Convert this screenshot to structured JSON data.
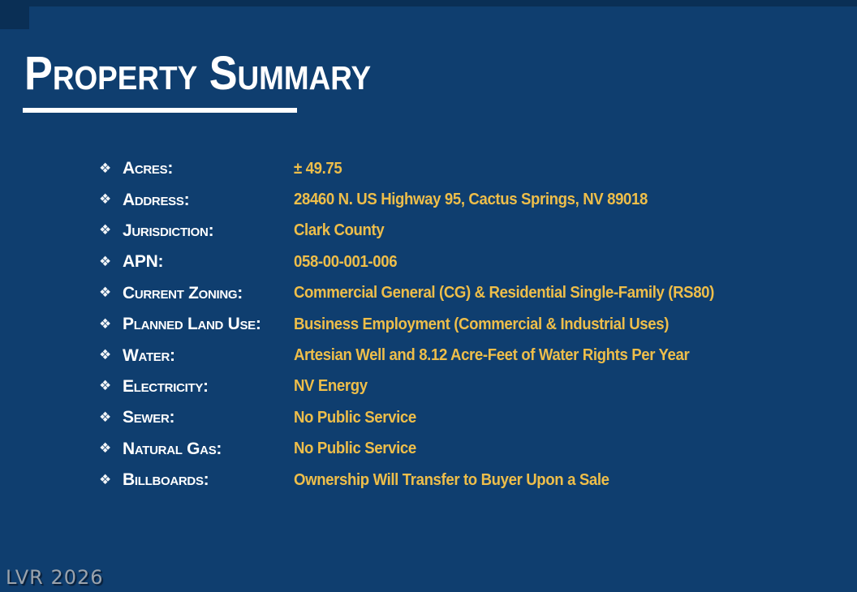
{
  "slide": {
    "title": "Property Summary",
    "watermark": "LVR 2026",
    "bullet_glyph": "❖",
    "colors": {
      "background": "#0F3E6F",
      "top_accent": "#0A2F55",
      "title_text": "#FFFFFF",
      "label_text": "#FFFFFF",
      "value_text": "#EEBE4A",
      "underline": "#FFFFFF",
      "watermark_text": "#A3A9B0"
    },
    "rows": [
      {
        "label": "Acres:",
        "value": "± 49.75"
      },
      {
        "label": "Address:",
        "value": "28460 N. US Highway 95, Cactus Springs, NV 89018"
      },
      {
        "label": "Jurisdiction:",
        "value": "Clark County"
      },
      {
        "label": "APN:",
        "value": "058-00-001-006"
      },
      {
        "label": "Current Zoning:",
        "value": "Commercial General (CG) & Residential Single-Family (RS80)"
      },
      {
        "label": "Planned Land Use:",
        "value": "Business Employment (Commercial & Industrial Uses)"
      },
      {
        "label": "Water:",
        "value": "Artesian Well and 8.12 Acre-Feet of Water Rights Per Year"
      },
      {
        "label": "Electricity:",
        "value": "NV Energy"
      },
      {
        "label": "Sewer:",
        "value": "No Public Service"
      },
      {
        "label": "Natural Gas:",
        "value": "No Public Service"
      },
      {
        "label": "Billboards:",
        "value": "Ownership Will Transfer to Buyer Upon a Sale"
      }
    ]
  }
}
